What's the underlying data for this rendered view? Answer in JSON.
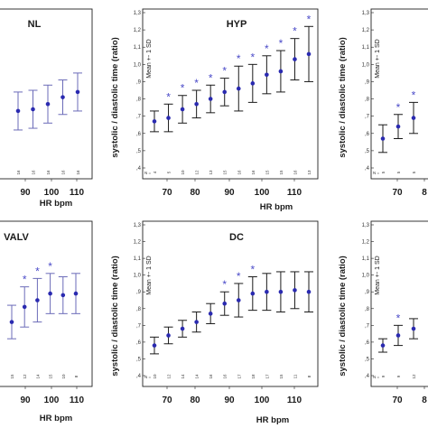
{
  "chart_data": [
    {
      "type": "scatter",
      "title": "NL",
      "ylabel": "",
      "xlabel": "HR bpm",
      "x_tick_labels": [
        "90",
        "100",
        "110"
      ],
      "n_labels": [
        "16",
        "16",
        "16",
        "16",
        "16"
      ],
      "mean_sd_label": "",
      "ylim": [
        0.4,
        1.3
      ],
      "y_ticks": [],
      "points": [
        {
          "mean": 0.73,
          "sd": 0.11,
          "star": false
        },
        {
          "mean": 0.74,
          "sd": 0.11,
          "star": false
        },
        {
          "mean": 0.77,
          "sd": 0.11,
          "star": false
        },
        {
          "mean": 0.81,
          "sd": 0.1,
          "star": false
        },
        {
          "mean": 0.84,
          "sd": 0.11,
          "star": false
        }
      ],
      "err_color": "#6b6bb8"
    },
    {
      "type": "scatter",
      "title": "HYP",
      "ylabel": "systolic / diastolic time (ratio)",
      "xlabel": "HR bpm",
      "x_tick_labels": [
        "70",
        "80",
        "90",
        "100",
        "110"
      ],
      "n_labels": [
        "4",
        "5",
        "10",
        "12",
        "13",
        "15",
        "16",
        "16",
        "15",
        "15",
        "16",
        "13"
      ],
      "mean_sd_label": "Mean +- 1 SD",
      "ylim": [
        0.4,
        1.3
      ],
      "y_ticks": [
        "1,3",
        "1,2",
        "1,1",
        "1,0",
        ",9",
        ",8",
        ",7",
        ",6",
        ",5",
        ",4"
      ],
      "points": [
        {
          "mean": 0.67,
          "sd": 0.06,
          "star": false
        },
        {
          "mean": 0.69,
          "sd": 0.08,
          "star": true
        },
        {
          "mean": 0.74,
          "sd": 0.08,
          "star": true
        },
        {
          "mean": 0.77,
          "sd": 0.08,
          "star": true
        },
        {
          "mean": 0.8,
          "sd": 0.08,
          "star": true
        },
        {
          "mean": 0.84,
          "sd": 0.08,
          "star": true
        },
        {
          "mean": 0.86,
          "sd": 0.13,
          "star": true
        },
        {
          "mean": 0.89,
          "sd": 0.11,
          "star": true
        },
        {
          "mean": 0.94,
          "sd": 0.11,
          "star": true
        },
        {
          "mean": 0.96,
          "sd": 0.12,
          "star": true
        },
        {
          "mean": 1.03,
          "sd": 0.12,
          "star": true
        },
        {
          "mean": 1.06,
          "sd": 0.16,
          "star": true
        }
      ],
      "err_color": "#1a1a1a"
    },
    {
      "type": "scatter",
      "title": "",
      "ylabel": "systolic / diastolic time (ratio)",
      "xlabel": "",
      "x_tick_labels": [
        "70",
        "8"
      ],
      "n_labels": [
        "5",
        "5",
        "5"
      ],
      "mean_sd_label": "Mean +- 1 SD",
      "ylim": [
        0.4,
        1.3
      ],
      "y_ticks": [
        "1,3",
        "1,2",
        "1,1",
        "1,0",
        ",9",
        ",8",
        ",7",
        ",6",
        ",5",
        ",4"
      ],
      "points": [
        {
          "mean": 0.57,
          "sd": 0.08,
          "star": false
        },
        {
          "mean": 0.64,
          "sd": 0.07,
          "star": true
        },
        {
          "mean": 0.69,
          "sd": 0.09,
          "star": true
        }
      ],
      "err_color": "#1a1a1a"
    },
    {
      "type": "scatter",
      "title": "VALV",
      "ylabel": "",
      "xlabel": "HR bpm",
      "x_tick_labels": [
        "90",
        "100",
        "110"
      ],
      "n_labels": [
        "15",
        "12",
        "14",
        "15",
        "10",
        "8"
      ],
      "mean_sd_label": "",
      "ylim": [
        0.4,
        1.3
      ],
      "y_ticks": [],
      "points": [
        {
          "mean": 0.72,
          "sd": 0.1,
          "star": false
        },
        {
          "mean": 0.81,
          "sd": 0.12,
          "star": true
        },
        {
          "mean": 0.85,
          "sd": 0.13,
          "star": true
        },
        {
          "mean": 0.89,
          "sd": 0.12,
          "star": true
        },
        {
          "mean": 0.88,
          "sd": 0.11,
          "star": false
        },
        {
          "mean": 0.89,
          "sd": 0.12,
          "star": false
        }
      ],
      "err_color": "#6b6bb8"
    },
    {
      "type": "scatter",
      "title": "DC",
      "ylabel": "systolic / diastolic time (ratio)",
      "xlabel": "HR bpm",
      "x_tick_labels": [
        "70",
        "80",
        "90",
        "100",
        "110"
      ],
      "n_labels": [
        "10",
        "12",
        "14",
        "14",
        "16",
        "16",
        "17",
        "18",
        "17",
        "15",
        "11",
        "8"
      ],
      "mean_sd_label": "Mean +- 1 SD",
      "ylim": [
        0.4,
        1.3
      ],
      "y_ticks": [
        "1,3",
        "1,2",
        "1,1",
        "1,0",
        ",9",
        ",8",
        ",7",
        ",6",
        ",5",
        ",4"
      ],
      "points": [
        {
          "mean": 0.58,
          "sd": 0.05,
          "star": false
        },
        {
          "mean": 0.64,
          "sd": 0.05,
          "star": false
        },
        {
          "mean": 0.68,
          "sd": 0.05,
          "star": false
        },
        {
          "mean": 0.72,
          "sd": 0.06,
          "star": false
        },
        {
          "mean": 0.77,
          "sd": 0.06,
          "star": false
        },
        {
          "mean": 0.83,
          "sd": 0.07,
          "star": true
        },
        {
          "mean": 0.85,
          "sd": 0.1,
          "star": true
        },
        {
          "mean": 0.89,
          "sd": 0.1,
          "star": true
        },
        {
          "mean": 0.9,
          "sd": 0.11,
          "star": false
        },
        {
          "mean": 0.9,
          "sd": 0.12,
          "star": false
        },
        {
          "mean": 0.91,
          "sd": 0.11,
          "star": false
        },
        {
          "mean": 0.9,
          "sd": 0.12,
          "star": false
        }
      ],
      "err_color": "#1a1a1a"
    },
    {
      "type": "scatter",
      "title": "",
      "ylabel": "systolic / diastolic time (ratio)",
      "xlabel": "",
      "x_tick_labels": [
        "70",
        "8"
      ],
      "n_labels": [
        "9",
        "9",
        "12"
      ],
      "mean_sd_label": "Mean +- 1 SD",
      "ylim": [
        0.4,
        1.3
      ],
      "y_ticks": [
        "1,3",
        "1,2",
        "1,1",
        "1,0",
        ",9",
        ",8",
        ",7",
        ",6",
        ",5",
        ",4"
      ],
      "points": [
        {
          "mean": 0.58,
          "sd": 0.04,
          "star": false
        },
        {
          "mean": 0.64,
          "sd": 0.06,
          "star": true
        },
        {
          "mean": 0.68,
          "sd": 0.06,
          "star": false
        }
      ],
      "err_color": "#1a1a1a"
    }
  ]
}
